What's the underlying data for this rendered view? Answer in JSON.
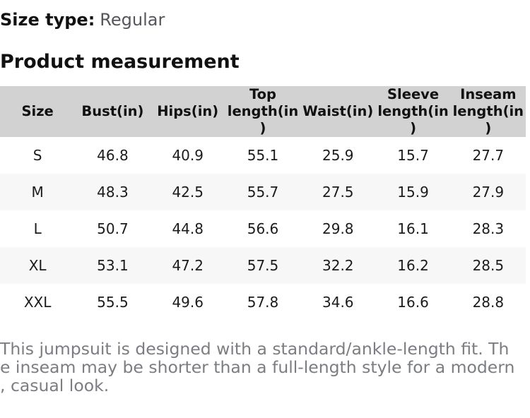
{
  "page": {
    "size_type": {
      "label": "Size type:",
      "value": "Regular"
    },
    "section_title": "Product measurement"
  },
  "table": {
    "columns": [
      {
        "label": "Size"
      },
      {
        "label": "Bust(in)"
      },
      {
        "label": "Hips(in)"
      },
      {
        "label": "Top\nlength(in\n)"
      },
      {
        "label": "Waist(in)"
      },
      {
        "label": "Sleeve\nlength(in\n)"
      },
      {
        "label": "Inseam\nlength(in\n)"
      }
    ],
    "rows": [
      {
        "size": "S",
        "values": [
          "46.8",
          "40.9",
          "55.1",
          "25.9",
          "15.7",
          "27.7"
        ]
      },
      {
        "size": "M",
        "values": [
          "48.3",
          "42.5",
          "55.7",
          "27.5",
          "15.9",
          "27.9"
        ]
      },
      {
        "size": "L",
        "values": [
          "50.7",
          "44.8",
          "56.6",
          "29.8",
          "16.1",
          "28.3"
        ]
      },
      {
        "size": "XL",
        "values": [
          "53.1",
          "47.2",
          "57.5",
          "32.2",
          "16.2",
          "28.5"
        ]
      },
      {
        "size": "XXL",
        "values": [
          "55.5",
          "49.6",
          "57.8",
          "34.6",
          "16.6",
          "28.8"
        ]
      }
    ]
  },
  "footer": {
    "note": "This jumpsuit is designed with a standard/ankle-length fit. Th\ne inseam may be shorter than a full-length style for a modern\n, casual look."
  },
  "colors": {
    "header_background": "#d2d2d2",
    "alternate_row_background": "#f7f7f7",
    "body_text": "#1b1b1b",
    "size_type_value_text": "#55565c",
    "footer_text": "#7b7d82"
  }
}
